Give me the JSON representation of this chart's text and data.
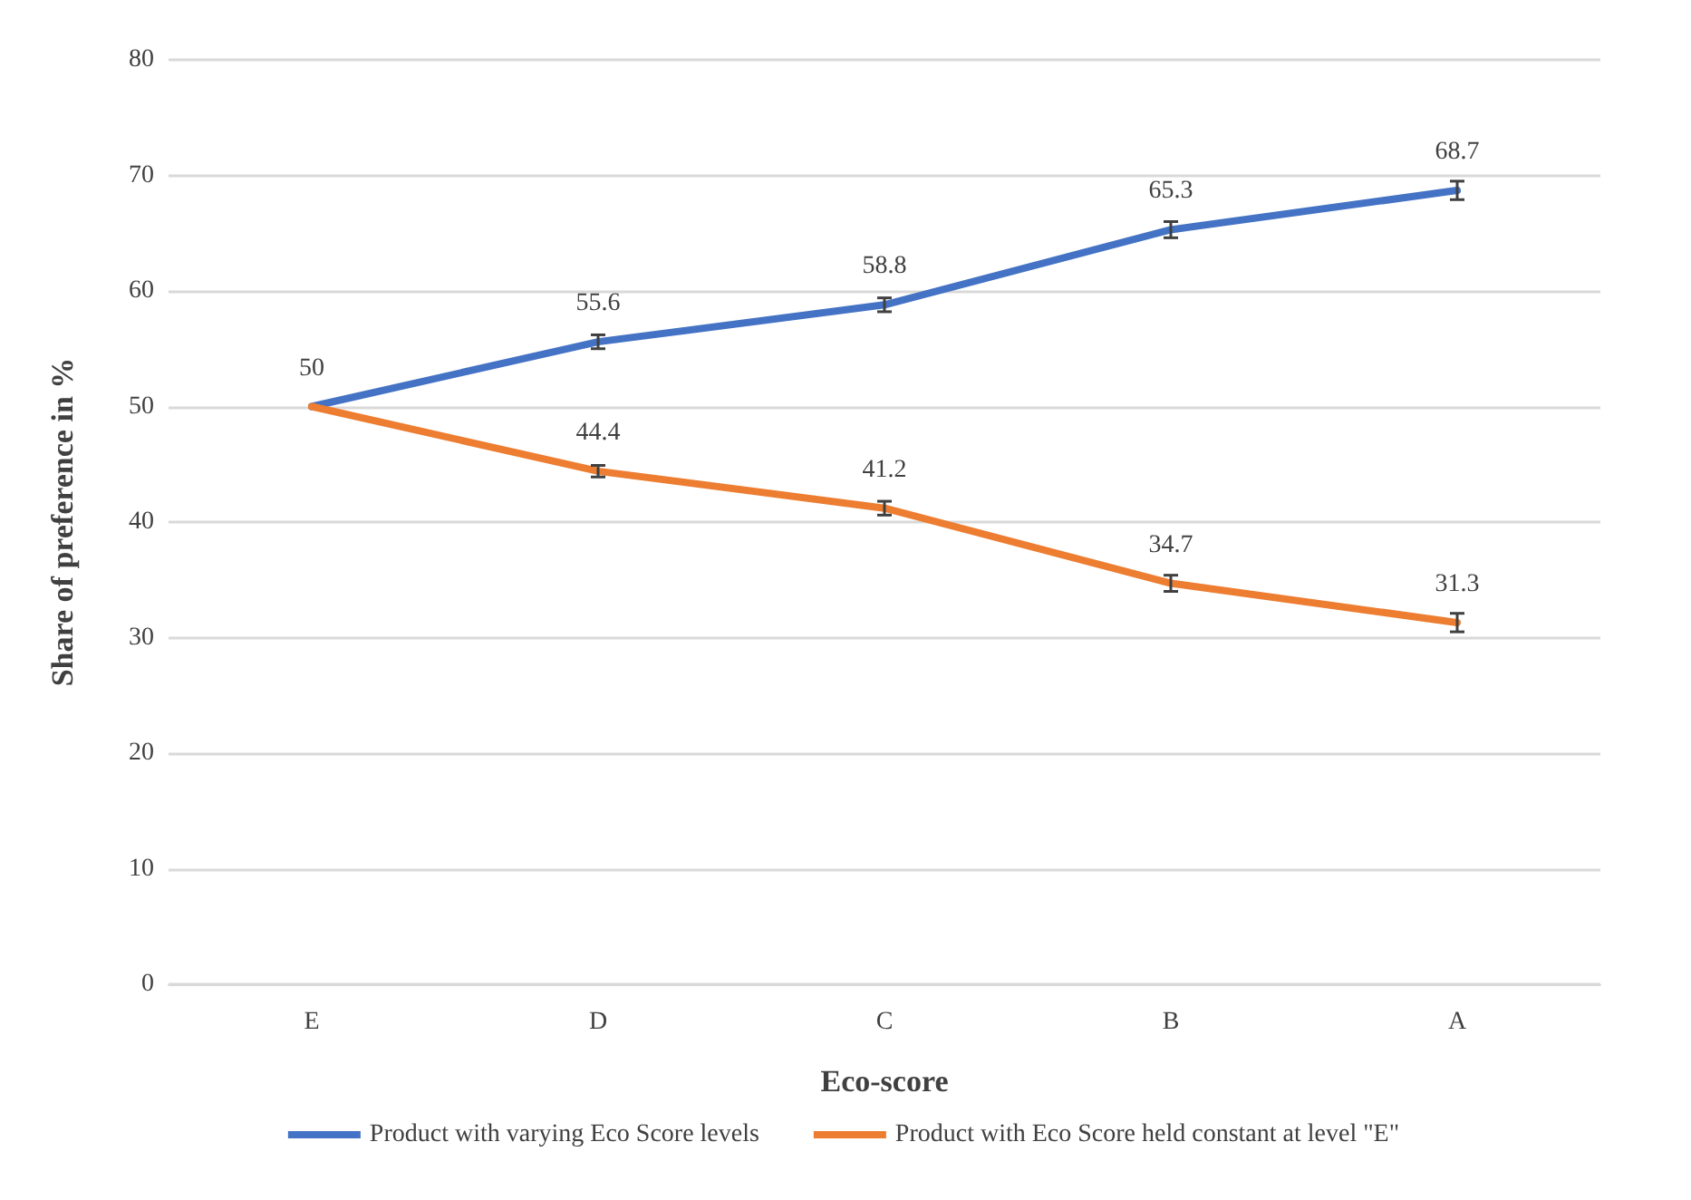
{
  "chart_data": {
    "type": "line",
    "xlabel": "Eco-score",
    "ylabel": "Share of preference in %",
    "categories": [
      "E",
      "D",
      "C",
      "B",
      "A"
    ],
    "series": [
      {
        "name": "Product with varying Eco Score levels",
        "color": "#4472c4",
        "values": [
          50,
          55.6,
          58.8,
          65.3,
          68.7
        ],
        "errors": [
          null,
          0.6,
          0.6,
          0.7,
          0.8
        ],
        "value_labels": [
          "50",
          "55.6",
          "58.8",
          "65.3",
          "68.7"
        ]
      },
      {
        "name": "Product with Eco Score held constant at level \"E\"",
        "color": "#ed7d31",
        "values": [
          50,
          44.4,
          41.2,
          34.7,
          31.3
        ],
        "errors": [
          null,
          0.5,
          0.6,
          0.7,
          0.8
        ],
        "value_labels": [
          null,
          "44.4",
          "41.2",
          "34.7",
          "31.3"
        ]
      }
    ],
    "ylim": [
      0,
      80
    ],
    "yticks": [
      0,
      10,
      20,
      30,
      40,
      50,
      60,
      70,
      80
    ],
    "grid": "y",
    "legend": "bottom",
    "marker": "none",
    "line_style": "solid"
  }
}
